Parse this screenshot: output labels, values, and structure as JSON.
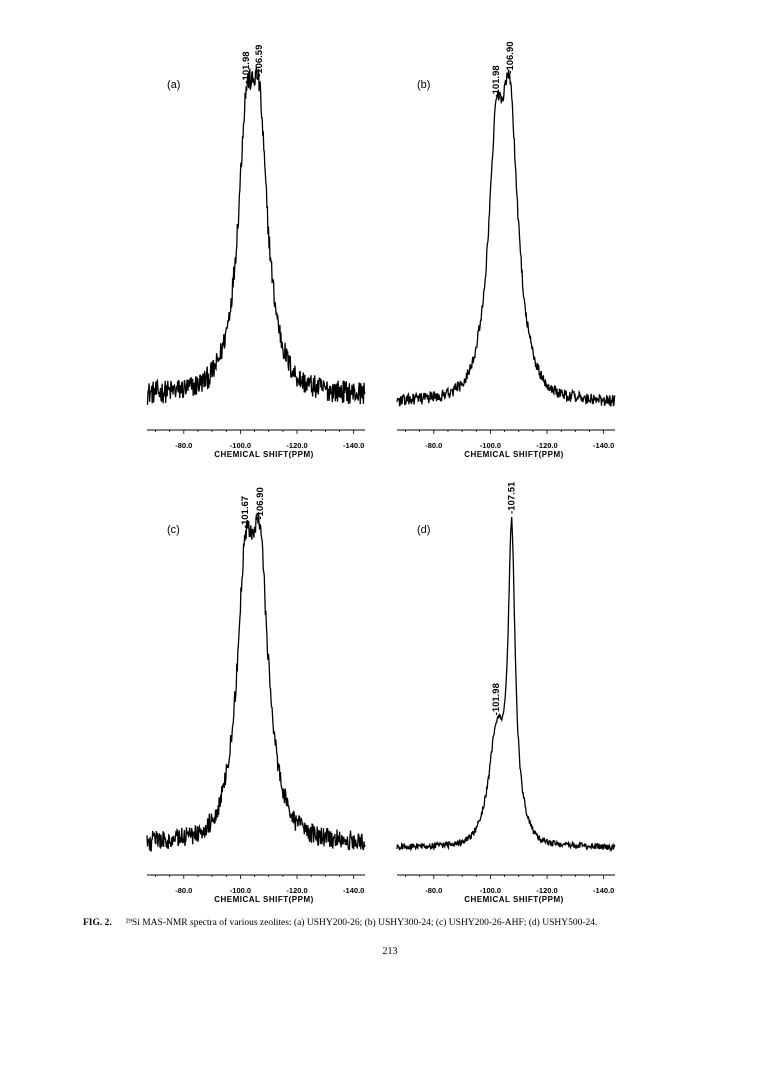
{
  "chart_data": [
    {
      "type": "line",
      "panel_label": "(a)",
      "xlabel": "CHEMICAL SHIFT(PPM)",
      "x_ticks": [
        "-80.0",
        "-100.0",
        "-120.0",
        "-140.0"
      ],
      "xlim": [
        -67,
        -144
      ],
      "peaks": [
        {
          "x": -101.98,
          "label": "-101.98",
          "rel_height": 0.91
        },
        {
          "x": -106.59,
          "label": "-106.59",
          "rel_height": 1.0
        }
      ],
      "peak_widths": [
        3.2,
        3.4
      ],
      "broad_component": {
        "height": 0.28,
        "width": 8.5
      },
      "baseline": 0.06,
      "noise": 0.035
    },
    {
      "type": "line",
      "panel_label": "(b)",
      "xlabel": "CHEMICAL SHIFT(PPM)",
      "x_ticks": [
        "-80.0",
        "-100.0",
        "-120.0",
        "-140.0"
      ],
      "xlim": [
        -67,
        -144
      ],
      "peaks": [
        {
          "x": -101.98,
          "label": "-101.98",
          "rel_height": 0.8
        },
        {
          "x": -106.9,
          "label": "-106.90",
          "rel_height": 1.0
        }
      ],
      "peak_widths": [
        3.0,
        3.3
      ],
      "broad_component": {
        "height": 0.25,
        "width": 8.0
      },
      "baseline": 0.02,
      "noise": 0.018
    },
    {
      "type": "line",
      "panel_label": "(c)",
      "xlabel": "CHEMICAL SHIFT(PPM)",
      "x_ticks": [
        "-80.0",
        "-100.0",
        "-120.0",
        "-140.0"
      ],
      "xlim": [
        -67,
        -144
      ],
      "peaks": [
        {
          "x": -101.67,
          "label": "-101.67",
          "rel_height": 0.91
        },
        {
          "x": -106.9,
          "label": "-106.90",
          "rel_height": 1.0
        }
      ],
      "peak_widths": [
        3.2,
        3.4
      ],
      "broad_component": {
        "height": 0.27,
        "width": 8.5
      },
      "baseline": 0.04,
      "noise": 0.03
    },
    {
      "type": "line",
      "panel_label": "(d)",
      "xlabel": "CHEMICAL SHIFT(PPM)",
      "x_ticks": [
        "-80.0",
        "-100.0",
        "-120.0",
        "-140.0"
      ],
      "xlim": [
        -67,
        -144
      ],
      "peaks": [
        {
          "x": -101.98,
          "label": "-101.98",
          "rel_height": 0.25
        },
        {
          "x": -107.51,
          "label": "-107.51",
          "rel_height": 1.0
        }
      ],
      "peak_widths": [
        2.8,
        1.4
      ],
      "broad_component": {
        "height": 0.18,
        "width": 7.0
      },
      "baseline": 0.02,
      "noise": 0.01
    }
  ],
  "caption": {
    "fig_label": "FIG. 2.",
    "text": "²⁹Si MAS-NMR spectra of various zeolites: (a) USHY200-26; (b) USHY300-24; (c) USHY200-26-AHF; (d) USHY500-24."
  },
  "page_number": "213"
}
